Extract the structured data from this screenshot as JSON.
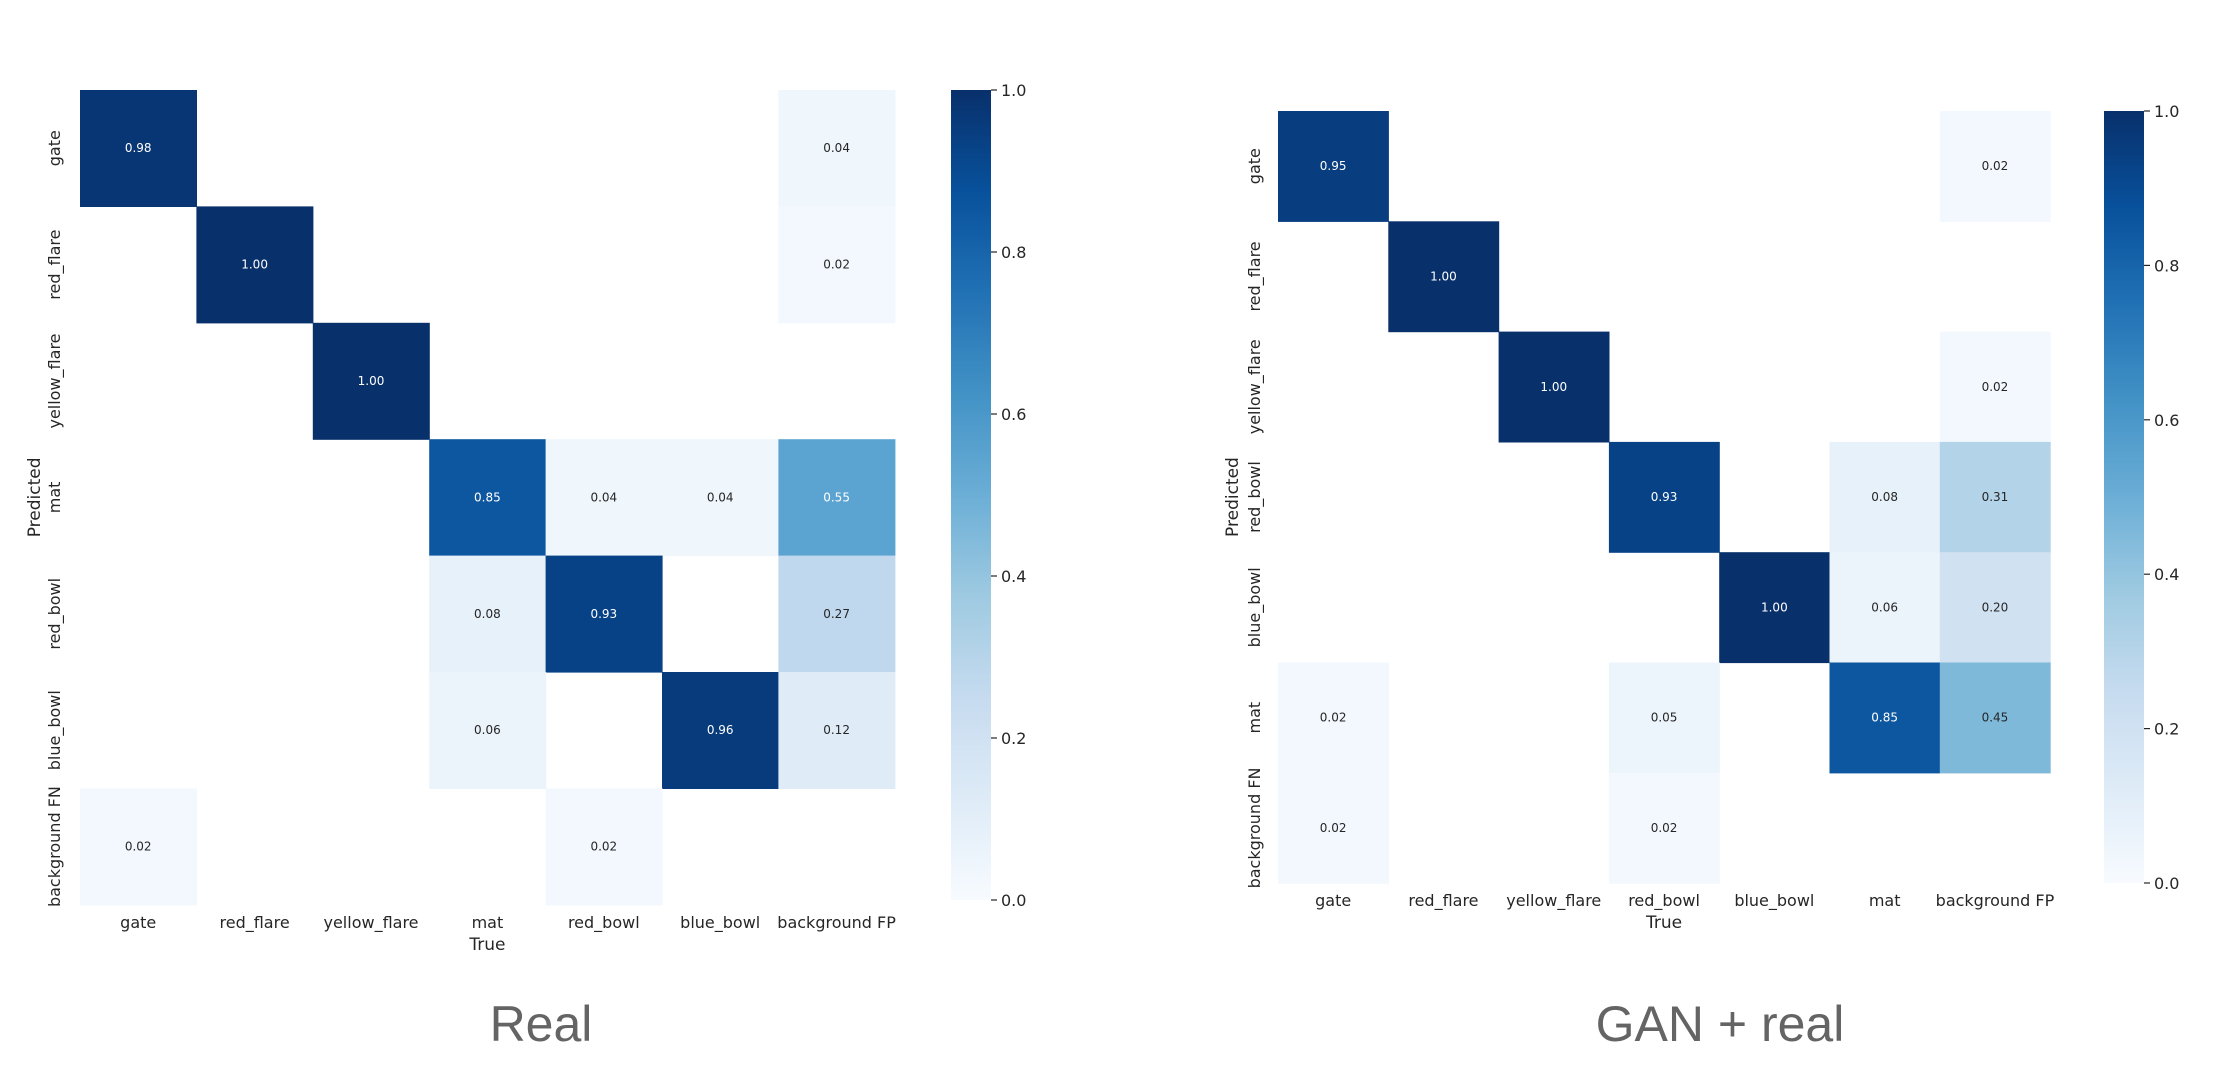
{
  "panels": [
    {
      "caption": "Real"
    },
    {
      "caption": "GAN + real"
    }
  ],
  "chart_data": [
    {
      "type": "heatmap",
      "title": "",
      "xlabel": "True",
      "ylabel": "Predicted",
      "x_categories": [
        "gate",
        "red_flare",
        "yellow_flare",
        "mat",
        "red_bowl",
        "blue_bowl",
        "background FP"
      ],
      "y_categories": [
        "gate",
        "red_flare",
        "yellow_flare",
        "mat",
        "red_bowl",
        "blue_bowl",
        "background FN"
      ],
      "values": [
        [
          0.98,
          null,
          null,
          null,
          null,
          null,
          0.04
        ],
        [
          null,
          1.0,
          null,
          null,
          null,
          null,
          0.02
        ],
        [
          null,
          null,
          1.0,
          null,
          null,
          null,
          null
        ],
        [
          null,
          null,
          null,
          0.85,
          0.04,
          0.04,
          0.55
        ],
        [
          null,
          null,
          null,
          0.08,
          0.93,
          null,
          0.27
        ],
        [
          null,
          null,
          null,
          0.06,
          null,
          0.96,
          0.12
        ],
        [
          0.02,
          null,
          null,
          null,
          0.02,
          null,
          null
        ]
      ],
      "colorbar": {
        "min": 0.0,
        "max": 1.0,
        "ticks": [
          "0.0",
          "0.2",
          "0.4",
          "0.6",
          "0.8",
          "1.0"
        ]
      },
      "colormap": "Blues",
      "grid": false
    },
    {
      "type": "heatmap",
      "title": "",
      "xlabel": "True",
      "ylabel": "Predicted",
      "x_categories": [
        "gate",
        "red_flare",
        "yellow_flare",
        "red_bowl",
        "blue_bowl",
        "mat",
        "background FP"
      ],
      "y_categories": [
        "gate",
        "red_flare",
        "yellow_flare",
        "red_bowl",
        "blue_bowl",
        "mat",
        "background FN"
      ],
      "values": [
        [
          0.95,
          null,
          null,
          null,
          null,
          null,
          0.02
        ],
        [
          null,
          1.0,
          null,
          null,
          null,
          null,
          null
        ],
        [
          null,
          null,
          1.0,
          null,
          null,
          null,
          0.02
        ],
        [
          null,
          null,
          null,
          0.93,
          null,
          0.08,
          0.31
        ],
        [
          null,
          null,
          null,
          null,
          1.0,
          0.06,
          0.2
        ],
        [
          0.02,
          null,
          null,
          0.05,
          null,
          0.85,
          0.45
        ],
        [
          0.02,
          null,
          null,
          0.02,
          null,
          null,
          null
        ]
      ],
      "colorbar": {
        "min": 0.0,
        "max": 1.0,
        "ticks": [
          "0.0",
          "0.2",
          "0.4",
          "0.6",
          "0.8",
          "1.0"
        ]
      },
      "colormap": "Blues",
      "grid": false
    }
  ]
}
